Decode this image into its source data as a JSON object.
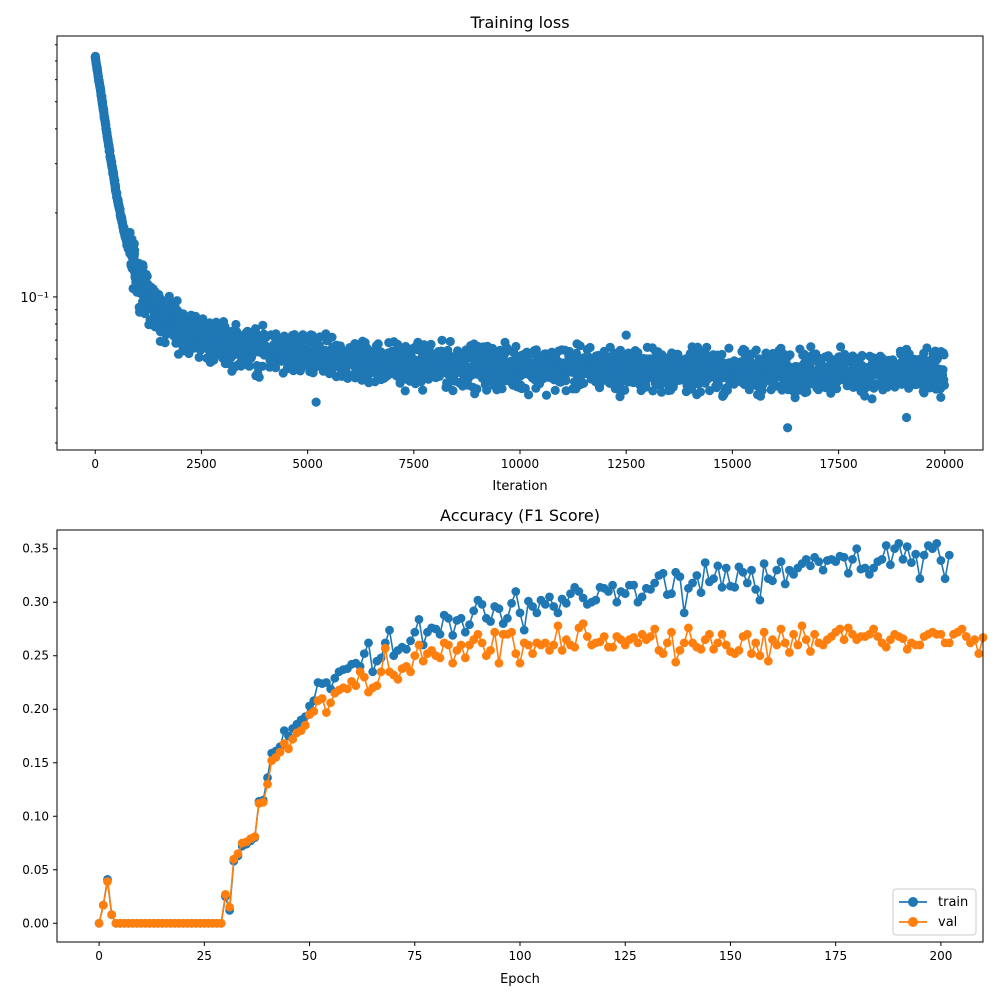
{
  "chart_data": [
    {
      "type": "scatter",
      "title": "Training loss",
      "xlabel": "Iteration",
      "ylabel": "",
      "yscale": "log",
      "xlim": [
        -900,
        20900
      ],
      "ylim": [
        0.0283,
        0.86
      ],
      "xticks": [
        0,
        2500,
        5000,
        7500,
        10000,
        12500,
        15000,
        17500,
        20000
      ],
      "xtick_labels": [
        "0",
        "2500",
        "5000",
        "7500",
        "10000",
        "12500",
        "15000",
        "17500",
        "20000"
      ],
      "yticks_major": [
        0.1
      ],
      "ytick_labels": [
        "10⁻¹"
      ],
      "series": [
        {
          "name": "loss",
          "color": "#1f77b4",
          "n_points": 20000,
          "description": "decay curve (approximate trend with noise band)",
          "x": [
            0,
            100,
            200,
            300,
            400,
            500,
            600,
            750,
            1000,
            1250,
            1500,
            2000,
            2500,
            3000,
            4000,
            5000,
            6000,
            8000,
            10000,
            12500,
            15000,
            17500,
            20000
          ],
          "y": [
            0.72,
            0.58,
            0.46,
            0.36,
            0.29,
            0.235,
            0.195,
            0.155,
            0.118,
            0.098,
            0.088,
            0.078,
            0.072,
            0.068,
            0.064,
            0.061,
            0.059,
            0.057,
            0.056,
            0.055,
            0.054,
            0.054,
            0.053
          ],
          "spread_upper": 1.27,
          "spread_lower": 0.76,
          "outliers": [
            [
              5200,
              0.042
            ],
            [
              12500,
              0.073
            ],
            [
              16300,
              0.034
            ],
            [
              19100,
              0.037
            ]
          ]
        }
      ]
    },
    {
      "type": "line",
      "title": "Accuracy (F1 Score)",
      "xlabel": "Epoch",
      "ylabel": "",
      "xlim": [
        -10,
        210
      ],
      "ylim": [
        -0.0175,
        0.3675
      ],
      "xticks": [
        0,
        25,
        50,
        75,
        100,
        125,
        150,
        175,
        200
      ],
      "xtick_labels": [
        "0",
        "25",
        "50",
        "75",
        "100",
        "125",
        "150",
        "175",
        "200"
      ],
      "yticks": [
        0,
        0.05,
        0.1,
        0.15,
        0.2,
        0.25,
        0.3,
        0.35
      ],
      "ytick_labels": [
        "0.00",
        "0.05",
        "0.10",
        "0.15",
        "0.20",
        "0.25",
        "0.30",
        "0.35"
      ],
      "legend": "lower-right",
      "series": [
        {
          "name": "train",
          "color": "#1f77b4",
          "x_start": 0,
          "values": [
            0.0,
            0.017,
            0.041,
            0.008,
            0.0,
            0.0,
            0.0,
            0.0,
            0.0,
            0.0,
            0.0,
            0.0,
            0.0,
            0.0,
            0.0,
            0.0,
            0.0,
            0.0,
            0.0,
            0.0,
            0.0,
            0.0,
            0.0,
            0.0,
            0.0,
            0.0,
            0.0,
            0.0,
            0.0,
            0.0,
            0.025,
            0.012,
            0.058,
            0.063,
            0.072,
            0.074,
            0.077,
            0.08,
            0.114,
            0.115,
            0.136,
            0.159,
            0.161,
            0.165,
            0.18,
            0.175,
            0.182,
            0.186,
            0.19,
            0.193,
            0.203,
            0.208,
            0.225,
            0.224,
            0.225,
            0.219,
            0.229,
            0.235,
            0.237,
            0.238,
            0.242,
            0.243,
            0.24,
            0.252,
            0.262,
            0.235,
            0.245,
            0.248,
            0.262,
            0.274,
            0.25,
            0.255,
            0.258,
            0.256,
            0.264,
            0.272,
            0.284,
            0.26,
            0.272,
            0.276,
            0.275,
            0.27,
            0.288,
            0.285,
            0.269,
            0.283,
            0.285,
            0.272,
            0.279,
            0.292,
            0.302,
            0.298,
            0.285,
            0.282,
            0.296,
            0.294,
            0.28,
            0.285,
            0.299,
            0.31,
            0.29,
            0.274,
            0.301,
            0.296,
            0.29,
            0.302,
            0.298,
            0.305,
            0.296,
            0.29,
            0.303,
            0.299,
            0.308,
            0.314,
            0.31,
            0.304,
            0.298,
            0.3,
            0.302,
            0.314,
            0.313,
            0.31,
            0.316,
            0.3,
            0.31,
            0.308,
            0.316,
            0.316,
            0.3,
            0.305,
            0.313,
            0.312,
            0.318,
            0.325,
            0.327,
            0.307,
            0.308,
            0.328,
            0.324,
            0.29,
            0.313,
            0.318,
            0.325,
            0.309,
            0.337,
            0.319,
            0.322,
            0.334,
            0.314,
            0.332,
            0.315,
            0.314,
            0.333,
            0.328,
            0.318,
            0.33,
            0.312,
            0.302,
            0.336,
            0.322,
            0.32,
            0.33,
            0.338,
            0.317,
            0.33,
            0.326,
            0.332,
            0.336,
            0.34,
            0.334,
            0.342,
            0.338,
            0.33,
            0.339,
            0.34,
            0.338,
            0.343,
            0.342,
            0.327,
            0.34,
            0.35,
            0.331,
            0.332,
            0.326,
            0.332,
            0.338,
            0.34,
            0.353,
            0.335,
            0.35,
            0.355,
            0.34,
            0.352,
            0.337,
            0.345,
            0.322,
            0.344,
            0.353,
            0.35,
            0.355,
            0.339,
            0.322,
            0.344
          ]
        },
        {
          "name": "val",
          "color": "#ff7f0e",
          "x_start": 0,
          "values": [
            0.0,
            0.017,
            0.039,
            0.008,
            0.0,
            0.0,
            0.0,
            0.0,
            0.0,
            0.0,
            0.0,
            0.0,
            0.0,
            0.0,
            0.0,
            0.0,
            0.0,
            0.0,
            0.0,
            0.0,
            0.0,
            0.0,
            0.0,
            0.0,
            0.0,
            0.0,
            0.0,
            0.0,
            0.0,
            0.0,
            0.027,
            0.015,
            0.06,
            0.065,
            0.075,
            0.076,
            0.079,
            0.081,
            0.112,
            0.113,
            0.13,
            0.152,
            0.155,
            0.16,
            0.168,
            0.163,
            0.172,
            0.178,
            0.18,
            0.185,
            0.195,
            0.198,
            0.208,
            0.21,
            0.197,
            0.206,
            0.215,
            0.218,
            0.22,
            0.219,
            0.226,
            0.222,
            0.235,
            0.23,
            0.216,
            0.22,
            0.222,
            0.235,
            0.257,
            0.235,
            0.232,
            0.228,
            0.238,
            0.24,
            0.235,
            0.25,
            0.26,
            0.245,
            0.252,
            0.255,
            0.25,
            0.248,
            0.262,
            0.26,
            0.243,
            0.255,
            0.26,
            0.248,
            0.26,
            0.265,
            0.27,
            0.262,
            0.25,
            0.255,
            0.272,
            0.243,
            0.27,
            0.27,
            0.272,
            0.252,
            0.243,
            0.262,
            0.26,
            0.252,
            0.262,
            0.26,
            0.262,
            0.255,
            0.26,
            0.278,
            0.255,
            0.265,
            0.26,
            0.258,
            0.276,
            0.28,
            0.268,
            0.26,
            0.262,
            0.263,
            0.268,
            0.258,
            0.258,
            0.268,
            0.265,
            0.26,
            0.265,
            0.267,
            0.262,
            0.27,
            0.265,
            0.268,
            0.275,
            0.255,
            0.252,
            0.262,
            0.272,
            0.244,
            0.255,
            0.262,
            0.276,
            0.262,
            0.258,
            0.256,
            0.265,
            0.27,
            0.256,
            0.262,
            0.27,
            0.26,
            0.254,
            0.252,
            0.255,
            0.268,
            0.27,
            0.252,
            0.262,
            0.25,
            0.272,
            0.245,
            0.265,
            0.26,
            0.275,
            0.262,
            0.253,
            0.27,
            0.26,
            0.278,
            0.265,
            0.254,
            0.27,
            0.262,
            0.26,
            0.265,
            0.268,
            0.272,
            0.275,
            0.265,
            0.276,
            0.27,
            0.265,
            0.268,
            0.268,
            0.27,
            0.275,
            0.268,
            0.262,
            0.258,
            0.265,
            0.27,
            0.268,
            0.266,
            0.256,
            0.262,
            0.26,
            0.26,
            0.268,
            0.27,
            0.272,
            0.27,
            0.27,
            0.262,
            0.262,
            0.27,
            0.272,
            0.275,
            0.268,
            0.262,
            0.265,
            0.252,
            0.267
          ]
        }
      ]
    }
  ]
}
